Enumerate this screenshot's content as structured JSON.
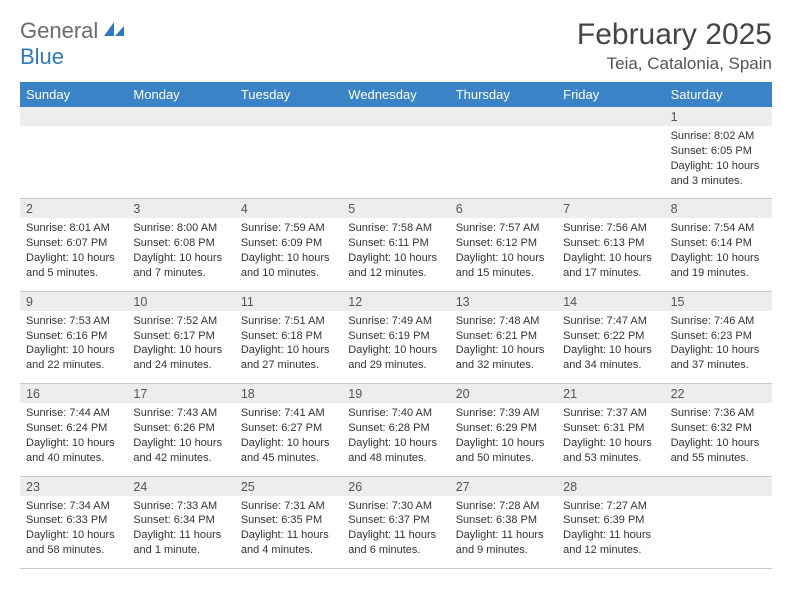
{
  "logo": {
    "text_gray": "General",
    "text_blue": "Blue"
  },
  "title": "February 2025",
  "location": "Teia, Catalonia, Spain",
  "colors": {
    "header_bg": "#3a83c6",
    "header_text": "#ffffff",
    "stripe_bg": "#ededed",
    "divider": "#c8c8c8",
    "logo_gray": "#6b6b6b",
    "logo_blue": "#2f78bd",
    "body_text": "#333333"
  },
  "day_names": [
    "Sunday",
    "Monday",
    "Tuesday",
    "Wednesday",
    "Thursday",
    "Friday",
    "Saturday"
  ],
  "weeks": [
    {
      "nums": [
        "",
        "",
        "",
        "",
        "",
        "",
        "1"
      ],
      "cells": [
        null,
        null,
        null,
        null,
        null,
        null,
        {
          "sunrise": "Sunrise: 8:02 AM",
          "sunset": "Sunset: 6:05 PM",
          "day1": "Daylight: 10 hours",
          "day2": "and 3 minutes."
        }
      ]
    },
    {
      "nums": [
        "2",
        "3",
        "4",
        "5",
        "6",
        "7",
        "8"
      ],
      "cells": [
        {
          "sunrise": "Sunrise: 8:01 AM",
          "sunset": "Sunset: 6:07 PM",
          "day1": "Daylight: 10 hours",
          "day2": "and 5 minutes."
        },
        {
          "sunrise": "Sunrise: 8:00 AM",
          "sunset": "Sunset: 6:08 PM",
          "day1": "Daylight: 10 hours",
          "day2": "and 7 minutes."
        },
        {
          "sunrise": "Sunrise: 7:59 AM",
          "sunset": "Sunset: 6:09 PM",
          "day1": "Daylight: 10 hours",
          "day2": "and 10 minutes."
        },
        {
          "sunrise": "Sunrise: 7:58 AM",
          "sunset": "Sunset: 6:11 PM",
          "day1": "Daylight: 10 hours",
          "day2": "and 12 minutes."
        },
        {
          "sunrise": "Sunrise: 7:57 AM",
          "sunset": "Sunset: 6:12 PM",
          "day1": "Daylight: 10 hours",
          "day2": "and 15 minutes."
        },
        {
          "sunrise": "Sunrise: 7:56 AM",
          "sunset": "Sunset: 6:13 PM",
          "day1": "Daylight: 10 hours",
          "day2": "and 17 minutes."
        },
        {
          "sunrise": "Sunrise: 7:54 AM",
          "sunset": "Sunset: 6:14 PM",
          "day1": "Daylight: 10 hours",
          "day2": "and 19 minutes."
        }
      ]
    },
    {
      "nums": [
        "9",
        "10",
        "11",
        "12",
        "13",
        "14",
        "15"
      ],
      "cells": [
        {
          "sunrise": "Sunrise: 7:53 AM",
          "sunset": "Sunset: 6:16 PM",
          "day1": "Daylight: 10 hours",
          "day2": "and 22 minutes."
        },
        {
          "sunrise": "Sunrise: 7:52 AM",
          "sunset": "Sunset: 6:17 PM",
          "day1": "Daylight: 10 hours",
          "day2": "and 24 minutes."
        },
        {
          "sunrise": "Sunrise: 7:51 AM",
          "sunset": "Sunset: 6:18 PM",
          "day1": "Daylight: 10 hours",
          "day2": "and 27 minutes."
        },
        {
          "sunrise": "Sunrise: 7:49 AM",
          "sunset": "Sunset: 6:19 PM",
          "day1": "Daylight: 10 hours",
          "day2": "and 29 minutes."
        },
        {
          "sunrise": "Sunrise: 7:48 AM",
          "sunset": "Sunset: 6:21 PM",
          "day1": "Daylight: 10 hours",
          "day2": "and 32 minutes."
        },
        {
          "sunrise": "Sunrise: 7:47 AM",
          "sunset": "Sunset: 6:22 PM",
          "day1": "Daylight: 10 hours",
          "day2": "and 34 minutes."
        },
        {
          "sunrise": "Sunrise: 7:46 AM",
          "sunset": "Sunset: 6:23 PM",
          "day1": "Daylight: 10 hours",
          "day2": "and 37 minutes."
        }
      ]
    },
    {
      "nums": [
        "16",
        "17",
        "18",
        "19",
        "20",
        "21",
        "22"
      ],
      "cells": [
        {
          "sunrise": "Sunrise: 7:44 AM",
          "sunset": "Sunset: 6:24 PM",
          "day1": "Daylight: 10 hours",
          "day2": "and 40 minutes."
        },
        {
          "sunrise": "Sunrise: 7:43 AM",
          "sunset": "Sunset: 6:26 PM",
          "day1": "Daylight: 10 hours",
          "day2": "and 42 minutes."
        },
        {
          "sunrise": "Sunrise: 7:41 AM",
          "sunset": "Sunset: 6:27 PM",
          "day1": "Daylight: 10 hours",
          "day2": "and 45 minutes."
        },
        {
          "sunrise": "Sunrise: 7:40 AM",
          "sunset": "Sunset: 6:28 PM",
          "day1": "Daylight: 10 hours",
          "day2": "and 48 minutes."
        },
        {
          "sunrise": "Sunrise: 7:39 AM",
          "sunset": "Sunset: 6:29 PM",
          "day1": "Daylight: 10 hours",
          "day2": "and 50 minutes."
        },
        {
          "sunrise": "Sunrise: 7:37 AM",
          "sunset": "Sunset: 6:31 PM",
          "day1": "Daylight: 10 hours",
          "day2": "and 53 minutes."
        },
        {
          "sunrise": "Sunrise: 7:36 AM",
          "sunset": "Sunset: 6:32 PM",
          "day1": "Daylight: 10 hours",
          "day2": "and 55 minutes."
        }
      ]
    },
    {
      "nums": [
        "23",
        "24",
        "25",
        "26",
        "27",
        "28",
        ""
      ],
      "cells": [
        {
          "sunrise": "Sunrise: 7:34 AM",
          "sunset": "Sunset: 6:33 PM",
          "day1": "Daylight: 10 hours",
          "day2": "and 58 minutes."
        },
        {
          "sunrise": "Sunrise: 7:33 AM",
          "sunset": "Sunset: 6:34 PM",
          "day1": "Daylight: 11 hours",
          "day2": "and 1 minute."
        },
        {
          "sunrise": "Sunrise: 7:31 AM",
          "sunset": "Sunset: 6:35 PM",
          "day1": "Daylight: 11 hours",
          "day2": "and 4 minutes."
        },
        {
          "sunrise": "Sunrise: 7:30 AM",
          "sunset": "Sunset: 6:37 PM",
          "day1": "Daylight: 11 hours",
          "day2": "and 6 minutes."
        },
        {
          "sunrise": "Sunrise: 7:28 AM",
          "sunset": "Sunset: 6:38 PM",
          "day1": "Daylight: 11 hours",
          "day2": "and 9 minutes."
        },
        {
          "sunrise": "Sunrise: 7:27 AM",
          "sunset": "Sunset: 6:39 PM",
          "day1": "Daylight: 11 hours",
          "day2": "and 12 minutes."
        },
        null
      ]
    }
  ]
}
